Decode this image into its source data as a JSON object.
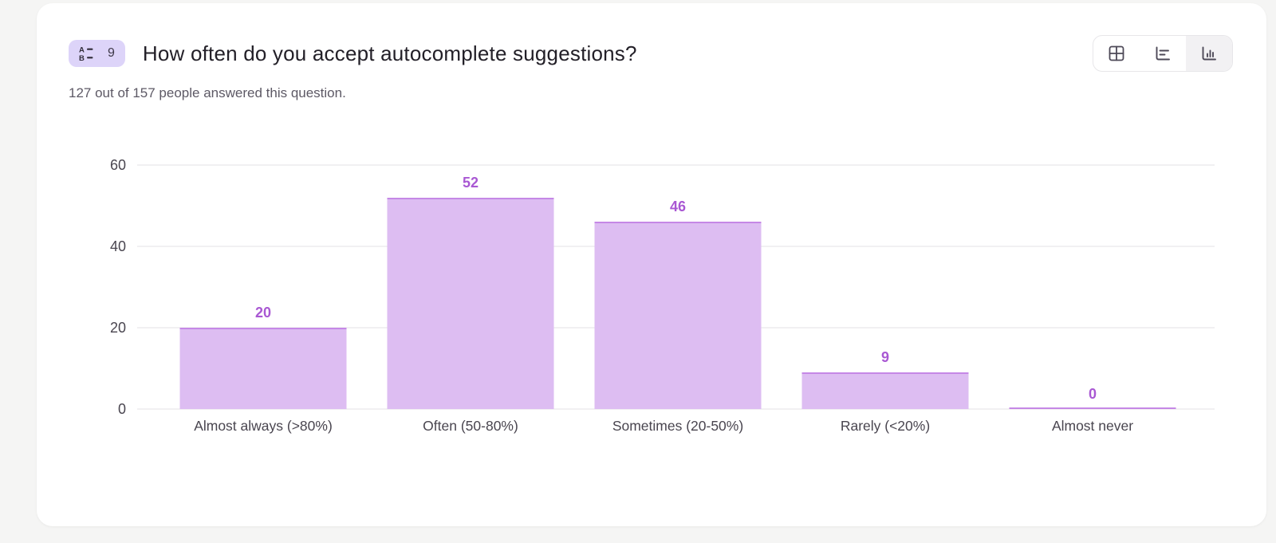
{
  "header": {
    "question_number": "9",
    "title": "How often do you accept autocomplete suggestions?",
    "subtitle": "127 out of 157 people answered this question."
  },
  "view_toggle": {
    "options": [
      {
        "id": "table",
        "icon": "table-view-icon",
        "selected": false
      },
      {
        "id": "horizontal-bars",
        "icon": "horizontal-bar-view-icon",
        "selected": false
      },
      {
        "id": "vertical-bars",
        "icon": "vertical-bar-view-icon",
        "selected": true
      }
    ]
  },
  "chart_data": {
    "type": "bar",
    "categories": [
      "Almost always (>80%)",
      "Often (50-80%)",
      "Sometimes (20-50%)",
      "Rarely (<20%)",
      "Almost never"
    ],
    "values": [
      20,
      52,
      46,
      9,
      0
    ],
    "title": "",
    "xlabel": "",
    "ylabel": "",
    "ylim": [
      0,
      60
    ],
    "yticks": [
      0,
      20,
      40,
      60
    ],
    "grid": true,
    "legend": false
  },
  "colors": {
    "badge_bg": "#ddd4f9",
    "bar_fill": "#ddbdf2",
    "bar_border": "#c588e6",
    "value_label": "#a958d3",
    "gridline": "#f1f0f2",
    "axis_text": "#49454f"
  }
}
